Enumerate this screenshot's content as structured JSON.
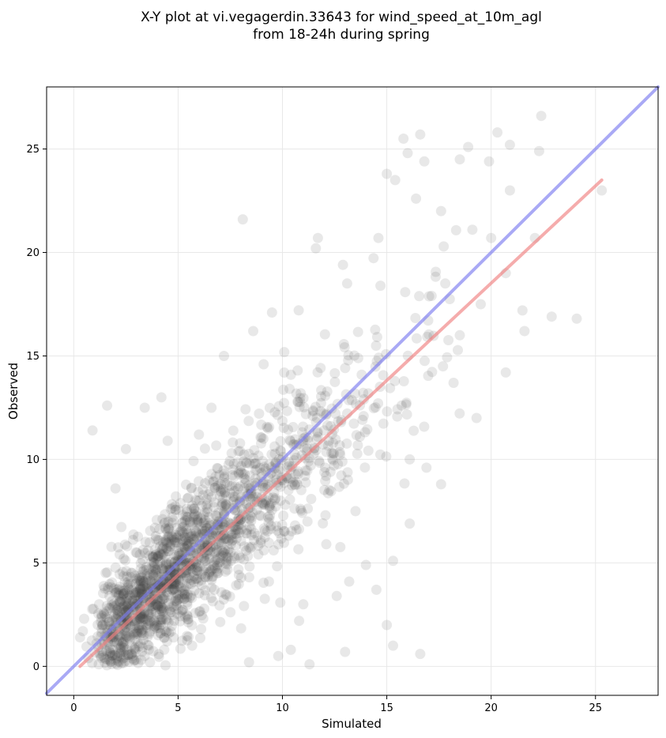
{
  "chart_data": {
    "type": "scatter",
    "title_line1": "X-Y plot at vi.vegagerdin.33643 for wind_speed_at_10m_agl",
    "title_line2": "from 18-24h during spring",
    "xlabel": "Simulated",
    "ylabel": "Observed",
    "xlim": [
      -1.3,
      28
    ],
    "ylim": [
      -1.4,
      28
    ],
    "xticks": [
      0,
      5,
      10,
      15,
      20,
      25
    ],
    "yticks": [
      0,
      5,
      10,
      15,
      20,
      25
    ],
    "grid": true,
    "point_color": "#404040",
    "identity_line_color": "#7b7bef",
    "fit_line_color": "#f07f7f",
    "identity_line": {
      "x": [
        -1.3,
        28
      ],
      "y": [
        -1.3,
        28
      ]
    },
    "fit_line": {
      "x": [
        0.3,
        25.3
      ],
      "y": [
        0.0,
        23.5
      ]
    },
    "points": [
      [
        0.5,
        2.3
      ],
      [
        0.9,
        11.4
      ],
      [
        1.6,
        12.6
      ],
      [
        2.0,
        8.6
      ],
      [
        2.5,
        10.5
      ],
      [
        3.4,
        12.5
      ],
      [
        4.2,
        13.0
      ],
      [
        4.5,
        10.9
      ],
      [
        6.0,
        11.2
      ],
      [
        6.6,
        12.5
      ],
      [
        7.2,
        15.0
      ],
      [
        8.1,
        21.6
      ],
      [
        8.6,
        16.2
      ],
      [
        9.1,
        14.6
      ],
      [
        9.5,
        17.1
      ],
      [
        11.6,
        20.2
      ],
      [
        11.7,
        20.7
      ],
      [
        12.9,
        19.4
      ],
      [
        13.1,
        18.5
      ],
      [
        14.6,
        20.7
      ],
      [
        15.0,
        23.8
      ],
      [
        15.4,
        23.5
      ],
      [
        15.8,
        25.5
      ],
      [
        16.0,
        24.8
      ],
      [
        16.4,
        22.6
      ],
      [
        16.6,
        25.7
      ],
      [
        16.8,
        24.4
      ],
      [
        17.6,
        22.0
      ],
      [
        18.5,
        24.5
      ],
      [
        18.9,
        25.1
      ],
      [
        19.1,
        21.1
      ],
      [
        19.9,
        24.4
      ],
      [
        20.3,
        25.8
      ],
      [
        20.9,
        23.0
      ],
      [
        20.9,
        25.2
      ],
      [
        22.1,
        20.7
      ],
      [
        22.3,
        24.9
      ],
      [
        22.4,
        26.6
      ],
      [
        22.9,
        16.9
      ],
      [
        24.1,
        16.8
      ],
      [
        25.3,
        23.0
      ],
      [
        21.6,
        16.2
      ],
      [
        20.7,
        14.2
      ],
      [
        19.3,
        12.0
      ],
      [
        17.6,
        8.8
      ],
      [
        16.9,
        9.6
      ],
      [
        16.1,
        10.0
      ],
      [
        16.1,
        6.9
      ],
      [
        16.6,
        0.6
      ],
      [
        15.3,
        1.0
      ],
      [
        15.0,
        2.0
      ],
      [
        14.5,
        3.7
      ],
      [
        15.3,
        5.1
      ],
      [
        13.0,
        0.7
      ],
      [
        11.3,
        0.1
      ],
      [
        10.4,
        0.8
      ],
      [
        10.8,
        2.2
      ],
      [
        9.8,
        0.5
      ],
      [
        8.4,
        0.2
      ],
      [
        3.4,
        0.5
      ],
      [
        1.2,
        0.1
      ],
      [
        0.7,
        0.4
      ],
      [
        0.3,
        1.4
      ],
      [
        18.2,
        13.7
      ],
      [
        17.8,
        18.5
      ],
      [
        18.5,
        16.0
      ],
      [
        19.5,
        17.5
      ],
      [
        20.0,
        20.7
      ],
      [
        20.7,
        19.0
      ],
      [
        21.5,
        17.2
      ],
      [
        13.5,
        7.5
      ],
      [
        14.0,
        4.9
      ],
      [
        13.2,
        4.1
      ],
      [
        12.6,
        3.4
      ],
      [
        12.3,
        9.4
      ],
      [
        11.2,
        7.0
      ],
      [
        12.1,
        5.9
      ],
      [
        11.0,
        3.0
      ]
    ],
    "cluster_generation": {
      "count": 1700,
      "x_min": 0.3,
      "x_max": 18.5,
      "slope": 0.9,
      "intercept": 0.15,
      "noise_sd": 2.4,
      "x_distribution": "gamma-like, mode near 4"
    }
  }
}
